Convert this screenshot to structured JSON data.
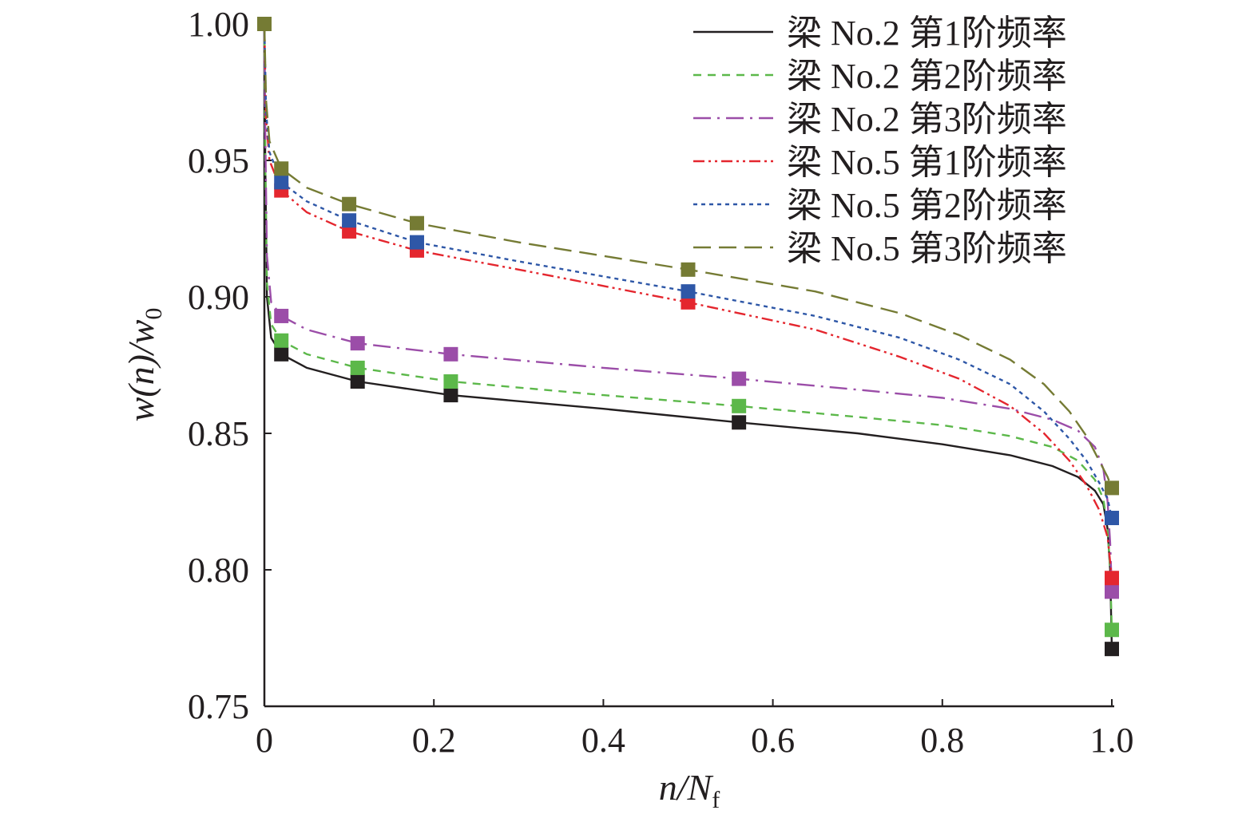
{
  "chart_data": {
    "type": "line",
    "title": "",
    "xlabel": {
      "main": "n/N",
      "sub": "f"
    },
    "ylabel": {
      "part1": "w(n)/w",
      "sub": "0"
    },
    "xlim": [
      0,
      1.0
    ],
    "ylim": [
      0.75,
      1.0
    ],
    "x_ticks": [
      {
        "value": 0,
        "label": "0"
      },
      {
        "value": 0.2,
        "label": "0.2"
      },
      {
        "value": 0.4,
        "label": "0.4"
      },
      {
        "value": 0.6,
        "label": "0.6"
      },
      {
        "value": 0.8,
        "label": "0.8"
      },
      {
        "value": 1.0,
        "label": "1.0"
      }
    ],
    "y_ticks": [
      {
        "value": 0.75,
        "label": "0.75"
      },
      {
        "value": 0.8,
        "label": "0.80"
      },
      {
        "value": 0.85,
        "label": "0.85"
      },
      {
        "value": 0.9,
        "label": "0.90"
      },
      {
        "value": 0.95,
        "label": "0.95"
      },
      {
        "value": 1.0,
        "label": "1.00"
      }
    ],
    "grid": false,
    "legend_position": "top-right",
    "series": [
      {
        "name": "梁 No.2 第1阶频率",
        "color": "#231f20",
        "dash": "solid",
        "markers": [
          [
            0,
            1.0
          ],
          [
            0.02,
            0.879
          ],
          [
            0.11,
            0.869
          ],
          [
            0.22,
            0.864
          ],
          [
            0.56,
            0.854
          ],
          [
            1.0,
            0.771
          ]
        ],
        "curve": [
          [
            0,
            1.0
          ],
          [
            0.001,
            0.95
          ],
          [
            0.003,
            0.9
          ],
          [
            0.008,
            0.885
          ],
          [
            0.02,
            0.879
          ],
          [
            0.05,
            0.874
          ],
          [
            0.11,
            0.869
          ],
          [
            0.22,
            0.864
          ],
          [
            0.4,
            0.859
          ],
          [
            0.56,
            0.854
          ],
          [
            0.7,
            0.85
          ],
          [
            0.8,
            0.846
          ],
          [
            0.88,
            0.842
          ],
          [
            0.93,
            0.838
          ],
          [
            0.96,
            0.834
          ],
          [
            0.98,
            0.829
          ],
          [
            0.99,
            0.824
          ],
          [
            0.995,
            0.815
          ],
          [
            0.998,
            0.8
          ],
          [
            1.0,
            0.771
          ]
        ]
      },
      {
        "name": "梁 No.2 第2阶频率",
        "color": "#5cb84a",
        "dash": "10,8",
        "markers": [
          [
            0,
            1.0
          ],
          [
            0.02,
            0.884
          ],
          [
            0.11,
            0.874
          ],
          [
            0.22,
            0.869
          ],
          [
            0.56,
            0.86
          ],
          [
            1.0,
            0.778
          ]
        ],
        "curve": [
          [
            0,
            1.0
          ],
          [
            0.001,
            0.95
          ],
          [
            0.003,
            0.905
          ],
          [
            0.008,
            0.89
          ],
          [
            0.02,
            0.884
          ],
          [
            0.05,
            0.879
          ],
          [
            0.11,
            0.874
          ],
          [
            0.22,
            0.869
          ],
          [
            0.4,
            0.864
          ],
          [
            0.56,
            0.86
          ],
          [
            0.7,
            0.856
          ],
          [
            0.8,
            0.853
          ],
          [
            0.88,
            0.849
          ],
          [
            0.93,
            0.845
          ],
          [
            0.96,
            0.84
          ],
          [
            0.98,
            0.833
          ],
          [
            0.99,
            0.826
          ],
          [
            0.995,
            0.815
          ],
          [
            0.998,
            0.8
          ],
          [
            1.0,
            0.778
          ]
        ]
      },
      {
        "name": "梁 No.2 第3阶频率",
        "color": "#9b4da8",
        "dash": "22,8,3,8",
        "markers": [
          [
            0,
            1.0
          ],
          [
            0.02,
            0.893
          ],
          [
            0.11,
            0.883
          ],
          [
            0.22,
            0.879
          ],
          [
            0.56,
            0.87
          ],
          [
            1.0,
            0.792
          ]
        ],
        "curve": [
          [
            0,
            1.0
          ],
          [
            0.001,
            0.96
          ],
          [
            0.003,
            0.915
          ],
          [
            0.008,
            0.898
          ],
          [
            0.02,
            0.893
          ],
          [
            0.05,
            0.888
          ],
          [
            0.11,
            0.883
          ],
          [
            0.22,
            0.879
          ],
          [
            0.4,
            0.874
          ],
          [
            0.56,
            0.87
          ],
          [
            0.7,
            0.866
          ],
          [
            0.8,
            0.863
          ],
          [
            0.88,
            0.859
          ],
          [
            0.93,
            0.855
          ],
          [
            0.96,
            0.851
          ],
          [
            0.98,
            0.845
          ],
          [
            0.99,
            0.837
          ],
          [
            0.995,
            0.825
          ],
          [
            0.998,
            0.81
          ],
          [
            1.0,
            0.792
          ]
        ]
      },
      {
        "name": "梁 No.5 第1阶频率",
        "color": "#e4262e",
        "dash": "14,5,3,5,3,5",
        "markers": [
          [
            0,
            1.0
          ],
          [
            0.02,
            0.939
          ],
          [
            0.1,
            0.924
          ],
          [
            0.18,
            0.917
          ],
          [
            0.5,
            0.898
          ],
          [
            1.0,
            0.797
          ]
        ],
        "curve": [
          [
            0,
            1.0
          ],
          [
            0.002,
            0.965
          ],
          [
            0.006,
            0.95
          ],
          [
            0.02,
            0.939
          ],
          [
            0.05,
            0.931
          ],
          [
            0.1,
            0.924
          ],
          [
            0.18,
            0.917
          ],
          [
            0.3,
            0.91
          ],
          [
            0.5,
            0.898
          ],
          [
            0.65,
            0.888
          ],
          [
            0.75,
            0.878
          ],
          [
            0.82,
            0.87
          ],
          [
            0.88,
            0.86
          ],
          [
            0.92,
            0.85
          ],
          [
            0.95,
            0.84
          ],
          [
            0.97,
            0.831
          ],
          [
            0.985,
            0.822
          ],
          [
            0.995,
            0.812
          ],
          [
            1.0,
            0.797
          ]
        ]
      },
      {
        "name": "梁 No.5 第2阶频率",
        "color": "#2e57a7",
        "dash": "5,5",
        "markers": [
          [
            0,
            1.0
          ],
          [
            0.02,
            0.942
          ],
          [
            0.1,
            0.928
          ],
          [
            0.18,
            0.92
          ],
          [
            0.5,
            0.902
          ],
          [
            1.0,
            0.819
          ]
        ],
        "curve": [
          [
            0,
            1.0
          ],
          [
            0.002,
            0.968
          ],
          [
            0.006,
            0.953
          ],
          [
            0.02,
            0.942
          ],
          [
            0.05,
            0.935
          ],
          [
            0.1,
            0.928
          ],
          [
            0.18,
            0.92
          ],
          [
            0.3,
            0.913
          ],
          [
            0.5,
            0.902
          ],
          [
            0.65,
            0.893
          ],
          [
            0.75,
            0.885
          ],
          [
            0.82,
            0.877
          ],
          [
            0.88,
            0.868
          ],
          [
            0.92,
            0.858
          ],
          [
            0.95,
            0.848
          ],
          [
            0.97,
            0.84
          ],
          [
            0.985,
            0.832
          ],
          [
            0.995,
            0.826
          ],
          [
            1.0,
            0.819
          ]
        ]
      },
      {
        "name": "梁 No.5 第3阶频率",
        "color": "#757b34",
        "dash": "22,10",
        "markers": [
          [
            0,
            1.0
          ],
          [
            0.02,
            0.947
          ],
          [
            0.1,
            0.934
          ],
          [
            0.18,
            0.927
          ],
          [
            0.5,
            0.91
          ],
          [
            1.0,
            0.83
          ]
        ],
        "curve": [
          [
            0,
            1.0
          ],
          [
            0.002,
            0.972
          ],
          [
            0.006,
            0.957
          ],
          [
            0.02,
            0.947
          ],
          [
            0.05,
            0.94
          ],
          [
            0.1,
            0.934
          ],
          [
            0.18,
            0.927
          ],
          [
            0.3,
            0.92
          ],
          [
            0.5,
            0.91
          ],
          [
            0.65,
            0.902
          ],
          [
            0.75,
            0.894
          ],
          [
            0.82,
            0.886
          ],
          [
            0.88,
            0.877
          ],
          [
            0.92,
            0.868
          ],
          [
            0.95,
            0.858
          ],
          [
            0.97,
            0.849
          ],
          [
            0.985,
            0.84
          ],
          [
            0.995,
            0.834
          ],
          [
            1.0,
            0.83
          ]
        ]
      }
    ]
  }
}
